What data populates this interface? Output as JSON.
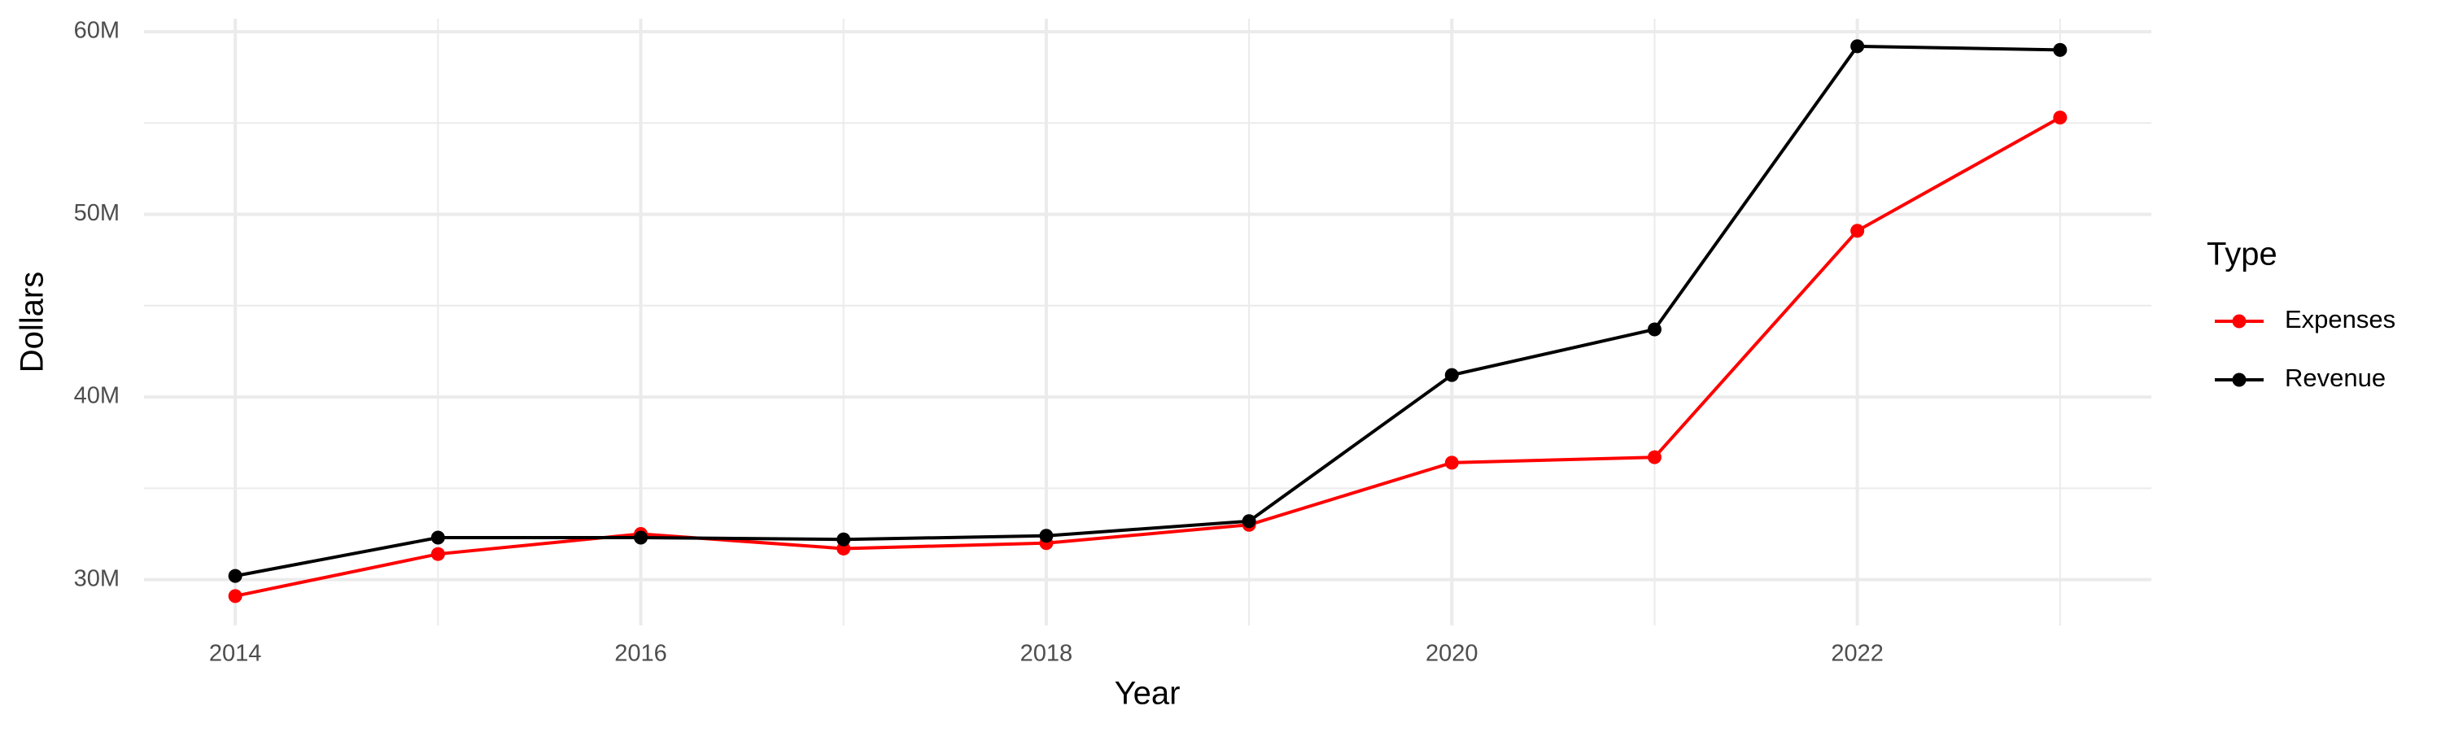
{
  "chart_data": {
    "type": "line",
    "x_label": "Year",
    "y_label": "Dollars",
    "legend_title": "Type",
    "x": [
      2014,
      2015,
      2016,
      2017,
      2018,
      2019,
      2020,
      2021,
      2022,
      2023
    ],
    "series": [
      {
        "name": "Expenses",
        "color": "#ff0000",
        "values": [
          29.1,
          31.4,
          32.5,
          31.7,
          32.0,
          33.0,
          36.4,
          36.7,
          49.1,
          55.3
        ]
      },
      {
        "name": "Revenue",
        "color": "#000000",
        "values": [
          30.2,
          32.3,
          32.3,
          32.2,
          32.4,
          33.2,
          41.2,
          43.7,
          59.2,
          59.0
        ]
      }
    ],
    "xlim": [
      2013.55,
      2023.45
    ],
    "xticks": [
      2014,
      2016,
      2018,
      2020,
      2022
    ],
    "x_minor_ticks": [
      2015,
      2017,
      2019,
      2021,
      2023
    ],
    "ylim": [
      27.49,
      60.71
    ],
    "yticks": [
      {
        "value": 30,
        "label": "30M"
      },
      {
        "value": 40,
        "label": "40M"
      },
      {
        "value": 50,
        "label": "50M"
      },
      {
        "value": 60,
        "label": "60M"
      }
    ],
    "y_minor_ticks": [
      35,
      45,
      55
    ],
    "grid": true,
    "legend_position": "right"
  }
}
